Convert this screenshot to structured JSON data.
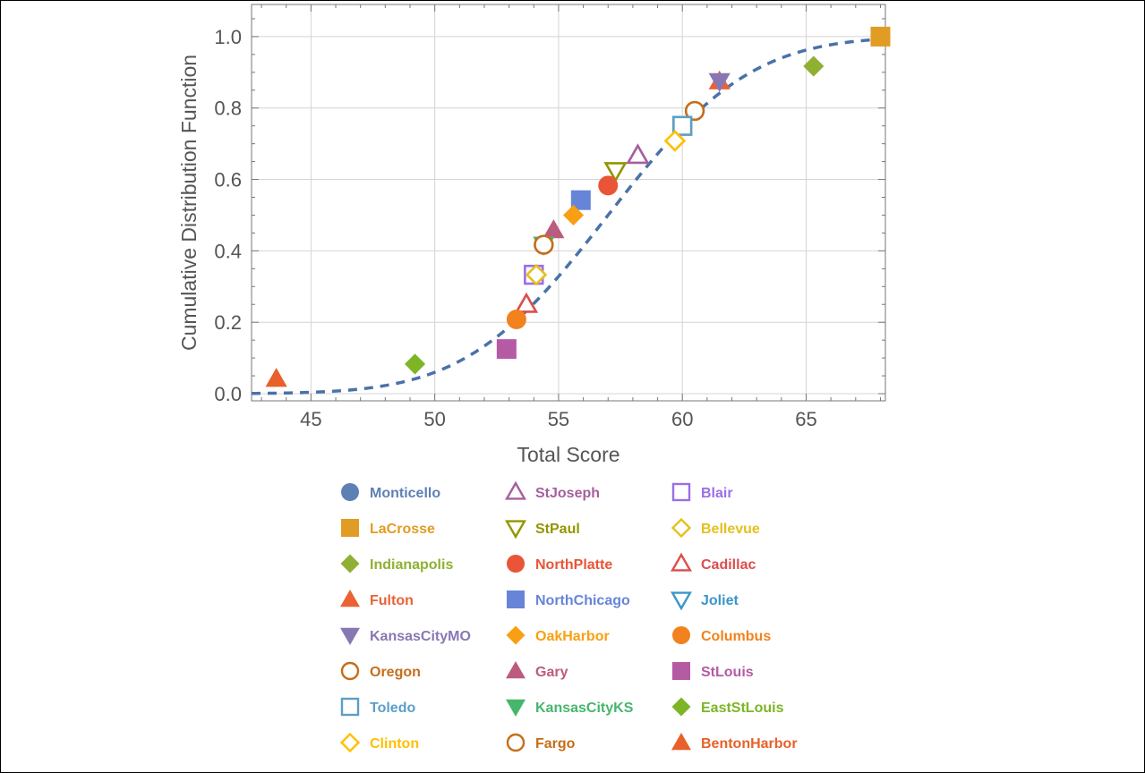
{
  "chart_data": {
    "type": "scatter",
    "title": "",
    "xlabel": "Total Score",
    "ylabel": "Cumulative Distribution Function",
    "xlim": [
      42.6,
      68.2
    ],
    "ylim": [
      -0.02,
      1.09
    ],
    "xticks": [
      "45",
      "50",
      "55",
      "60",
      "65"
    ],
    "yticks": [
      "0.0",
      "0.2",
      "0.4",
      "0.6",
      "0.8",
      "1.0"
    ],
    "grid": true,
    "legend_position": "bottom",
    "fit_curve": {
      "style": "dashed",
      "color": "#4a72a8",
      "distribution": "normal",
      "mean": 57.0,
      "sd": 4.5
    },
    "series": [
      {
        "name": "Monticello",
        "color": "#5e81b5",
        "marker": "circle-filled",
        "points": [
          [
            68.0,
            1.0
          ]
        ]
      },
      {
        "name": "LaCrosse",
        "color": "#e19c24",
        "marker": "square-filled",
        "points": [
          [
            68.0,
            1.0
          ]
        ]
      },
      {
        "name": "Indianapolis",
        "color": "#8fb032",
        "marker": "diamond-filled",
        "points": [
          [
            65.3,
            0.917
          ]
        ]
      },
      {
        "name": "Fulton",
        "color": "#eb6235",
        "marker": "triangle-up-filled",
        "points": [
          [
            61.5,
            0.875
          ]
        ]
      },
      {
        "name": "KansasCityMO",
        "color": "#8778b3",
        "marker": "triangle-down-filled",
        "points": [
          [
            61.5,
            0.875
          ]
        ]
      },
      {
        "name": "Oregon",
        "color": "#c56e1a",
        "marker": "circle-open",
        "points": [
          [
            60.5,
            0.792
          ]
        ]
      },
      {
        "name": "Toledo",
        "color": "#5d9ec7",
        "marker": "square-open",
        "points": [
          [
            60.0,
            0.75
          ]
        ]
      },
      {
        "name": "Clinton",
        "color": "#ffbf00",
        "marker": "diamond-open",
        "points": [
          [
            59.7,
            0.708
          ]
        ]
      },
      {
        "name": "StJoseph",
        "color": "#a5609d",
        "marker": "triangle-up-open",
        "points": [
          [
            58.2,
            0.667
          ]
        ]
      },
      {
        "name": "StPaul",
        "color": "#929600",
        "marker": "triangle-down-open",
        "points": [
          [
            57.3,
            0.625
          ]
        ]
      },
      {
        "name": "NorthPlatte",
        "color": "#e95536",
        "marker": "circle-filled",
        "points": [
          [
            57.0,
            0.583
          ]
        ]
      },
      {
        "name": "NorthChicago",
        "color": "#6685d9",
        "marker": "square-filled",
        "points": [
          [
            55.9,
            0.542
          ]
        ]
      },
      {
        "name": "OakHarbor",
        "color": "#f89f13",
        "marker": "diamond-filled",
        "points": [
          [
            55.6,
            0.5
          ]
        ]
      },
      {
        "name": "Gary",
        "color": "#bc5b80",
        "marker": "triangle-up-filled",
        "points": [
          [
            54.8,
            0.458
          ]
        ]
      },
      {
        "name": "KansasCityKS",
        "color": "#47b66d",
        "marker": "triangle-down-filled",
        "points": [
          [
            54.4,
            0.417
          ]
        ]
      },
      {
        "name": "Fargo",
        "color": "#c56e1a",
        "marker": "circle-open",
        "points": [
          [
            54.4,
            0.417
          ]
        ]
      },
      {
        "name": "Blair",
        "color": "#9c6ee6",
        "marker": "square-open",
        "points": [
          [
            54.0,
            0.333
          ]
        ]
      },
      {
        "name": "Bellevue",
        "color": "#e5c01f",
        "marker": "diamond-open",
        "points": [
          [
            54.1,
            0.333
          ]
        ]
      },
      {
        "name": "Cadillac",
        "color": "#de4d4d",
        "marker": "triangle-up-open",
        "points": [
          [
            53.7,
            0.25
          ]
        ]
      },
      {
        "name": "Joliet",
        "color": "#3a96c9",
        "marker": "triangle-down-open",
        "points": []
      },
      {
        "name": "Columbus",
        "color": "#f1821d",
        "marker": "circle-filled",
        "points": [
          [
            53.3,
            0.208
          ]
        ]
      },
      {
        "name": "StLouis",
        "color": "#b55ba4",
        "marker": "square-filled",
        "points": [
          [
            52.9,
            0.125
          ]
        ]
      },
      {
        "name": "EastStLouis",
        "color": "#7db526",
        "marker": "diamond-filled",
        "points": [
          [
            49.2,
            0.083
          ]
        ]
      },
      {
        "name": "BentonHarbor",
        "color": "#e8602a",
        "marker": "triangle-up-filled",
        "points": [
          [
            43.6,
            0.042
          ]
        ]
      }
    ]
  }
}
